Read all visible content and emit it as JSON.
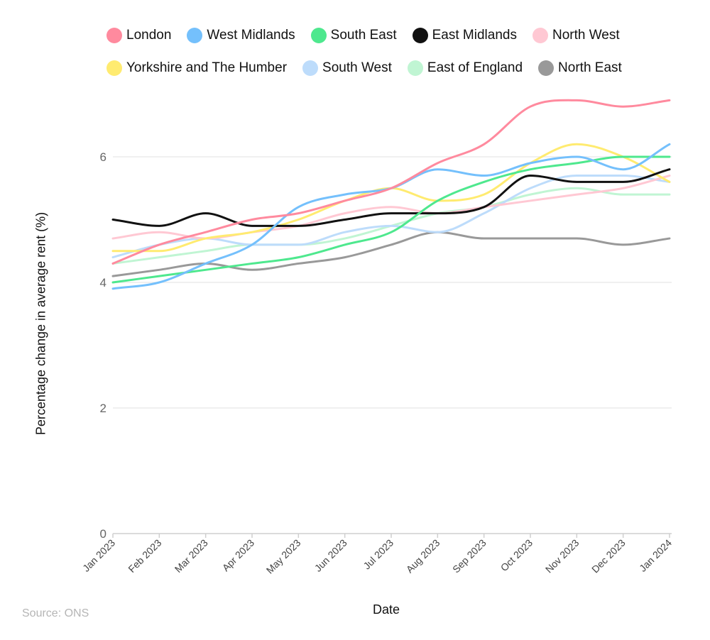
{
  "chart_data": {
    "type": "line",
    "title": "",
    "xlabel": "Date",
    "ylabel": "Percentage change in average rent (%)",
    "ylim": [
      0,
      7
    ],
    "yticks": [
      0,
      2,
      4,
      6
    ],
    "grid": true,
    "legend_position": "top",
    "categories": [
      "Jan 2023",
      "Feb 2023",
      "Mar 2023",
      "Apr 2023",
      "May 2023",
      "Jun 2023",
      "Jul 2023",
      "Aug 2023",
      "Sep 2023",
      "Oct 2023",
      "Nov 2023",
      "Dec 2023",
      "Jan 2024"
    ],
    "series": [
      {
        "name": "London",
        "color": "#ff8a9e",
        "values": [
          4.3,
          4.6,
          4.8,
          5.0,
          5.1,
          5.3,
          5.5,
          5.9,
          6.2,
          6.8,
          6.9,
          6.8,
          6.9
        ]
      },
      {
        "name": "West Midlands",
        "color": "#74c0fc",
        "values": [
          3.9,
          4.0,
          4.3,
          4.6,
          5.2,
          5.4,
          5.5,
          5.8,
          5.7,
          5.9,
          6.0,
          5.8,
          6.2
        ]
      },
      {
        "name": "South East",
        "color": "#4ee88e",
        "values": [
          4.0,
          4.1,
          4.2,
          4.3,
          4.4,
          4.6,
          4.8,
          5.3,
          5.6,
          5.8,
          5.9,
          6.0,
          6.0
        ]
      },
      {
        "name": "East Midlands",
        "color": "#111111",
        "values": [
          5.0,
          4.9,
          5.1,
          4.9,
          4.9,
          5.0,
          5.1,
          5.1,
          5.2,
          5.7,
          5.6,
          5.6,
          5.8
        ]
      },
      {
        "name": "North West",
        "color": "#ffc8d3",
        "values": [
          4.7,
          4.8,
          4.7,
          4.8,
          4.9,
          5.1,
          5.2,
          5.1,
          5.2,
          5.3,
          5.4,
          5.5,
          5.7
        ]
      },
      {
        "name": "Yorkshire and The Humber",
        "color": "#ffeb70",
        "values": [
          4.5,
          4.5,
          4.7,
          4.8,
          5.0,
          5.3,
          5.5,
          5.3,
          5.4,
          5.9,
          6.2,
          6.0,
          5.6
        ]
      },
      {
        "name": "South West",
        "color": "#bddcfb",
        "values": [
          4.4,
          4.6,
          4.7,
          4.6,
          4.6,
          4.8,
          4.9,
          4.8,
          5.1,
          5.5,
          5.7,
          5.7,
          5.6
        ]
      },
      {
        "name": "East of England",
        "color": "#c0f5d3",
        "values": [
          4.3,
          4.4,
          4.5,
          4.6,
          4.6,
          4.7,
          4.9,
          5.1,
          5.2,
          5.4,
          5.5,
          5.4,
          5.4
        ]
      },
      {
        "name": "North East",
        "color": "#999999",
        "values": [
          4.1,
          4.2,
          4.3,
          4.2,
          4.3,
          4.4,
          4.6,
          4.8,
          4.7,
          4.7,
          4.7,
          4.6,
          4.7
        ]
      }
    ]
  },
  "source": "Source: ONS"
}
